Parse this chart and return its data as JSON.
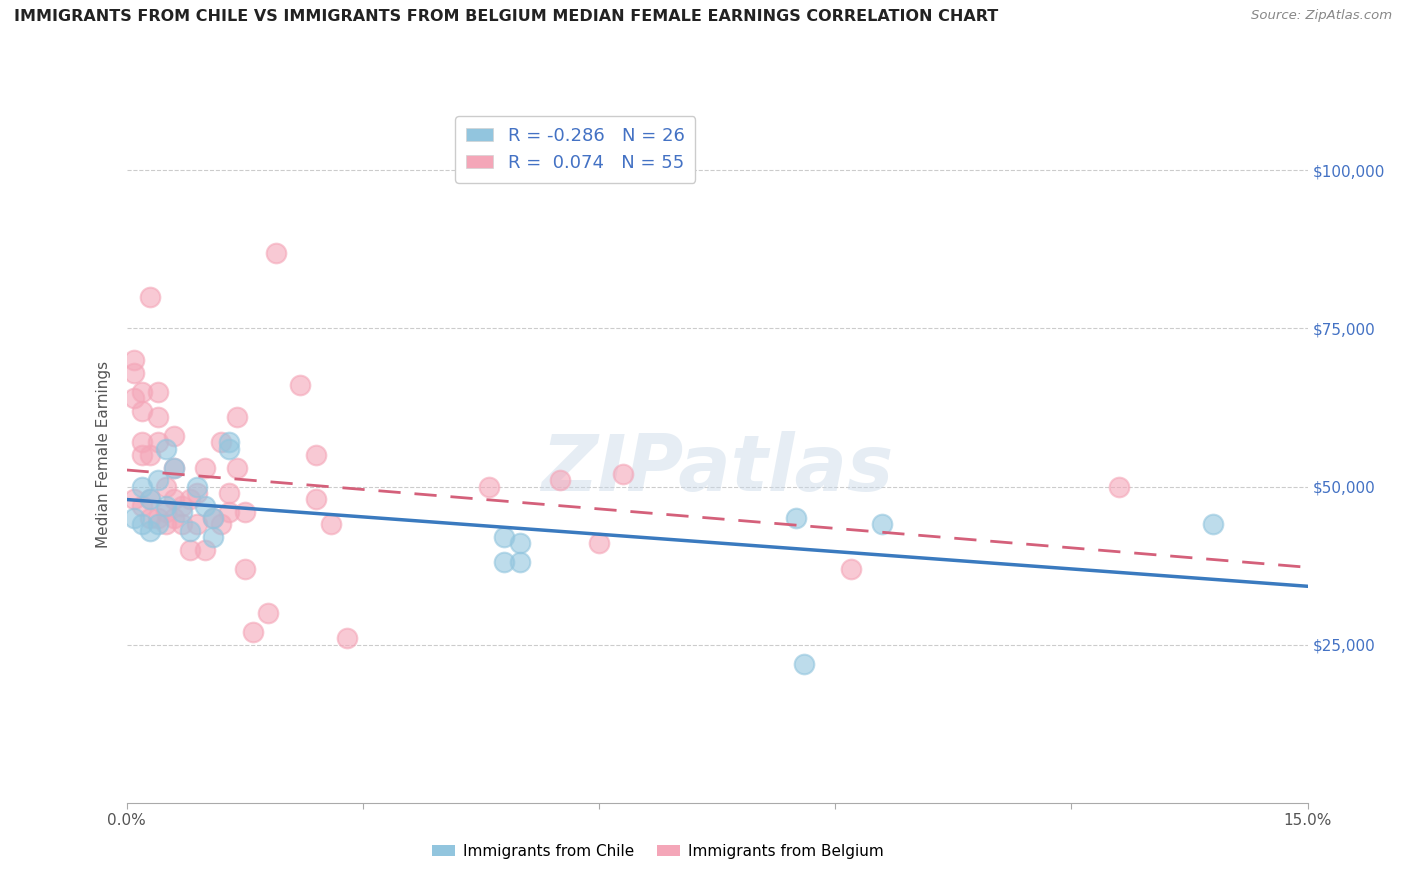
{
  "title": "IMMIGRANTS FROM CHILE VS IMMIGRANTS FROM BELGIUM MEDIAN FEMALE EARNINGS CORRELATION CHART",
  "source": "Source: ZipAtlas.com",
  "ylabel": "Median Female Earnings",
  "xlim": [
    0.0,
    0.15
  ],
  "ylim": [
    0,
    110000
  ],
  "ytick_positions": [
    25000,
    50000,
    75000,
    100000
  ],
  "ytick_labels": [
    "$25,000",
    "$50,000",
    "$75,000",
    "$100,000"
  ],
  "chile_R": -0.286,
  "chile_N": 26,
  "belgium_R": 0.074,
  "belgium_N": 55,
  "chile_color": "#92c5de",
  "belgium_color": "#f4a6b8",
  "chile_line_color": "#3a7abf",
  "belgium_line_color": "#d4607a",
  "watermark": "ZIPatlas",
  "chile_x": [
    0.001,
    0.002,
    0.002,
    0.003,
    0.003,
    0.004,
    0.004,
    0.005,
    0.005,
    0.006,
    0.007,
    0.008,
    0.009,
    0.01,
    0.011,
    0.011,
    0.013,
    0.013,
    0.048,
    0.048,
    0.05,
    0.05,
    0.085,
    0.086,
    0.096,
    0.138
  ],
  "chile_y": [
    45000,
    50000,
    44000,
    48000,
    43000,
    51000,
    44000,
    47000,
    56000,
    53000,
    46000,
    43000,
    50000,
    47000,
    45000,
    42000,
    57000,
    56000,
    42000,
    38000,
    38000,
    41000,
    45000,
    22000,
    44000,
    44000
  ],
  "belgium_x": [
    0.001,
    0.001,
    0.001,
    0.001,
    0.002,
    0.002,
    0.002,
    0.002,
    0.002,
    0.003,
    0.003,
    0.003,
    0.003,
    0.004,
    0.004,
    0.004,
    0.004,
    0.005,
    0.005,
    0.005,
    0.006,
    0.006,
    0.006,
    0.006,
    0.007,
    0.007,
    0.008,
    0.008,
    0.009,
    0.009,
    0.01,
    0.01,
    0.011,
    0.012,
    0.012,
    0.013,
    0.013,
    0.014,
    0.014,
    0.015,
    0.015,
    0.016,
    0.018,
    0.019,
    0.022,
    0.024,
    0.024,
    0.026,
    0.028,
    0.046,
    0.055,
    0.06,
    0.063,
    0.092,
    0.126
  ],
  "belgium_y": [
    48000,
    64000,
    68000,
    70000,
    47000,
    55000,
    57000,
    62000,
    65000,
    45000,
    48000,
    55000,
    80000,
    45000,
    57000,
    61000,
    65000,
    44000,
    46000,
    50000,
    45000,
    48000,
    53000,
    58000,
    44000,
    47000,
    40000,
    48000,
    44000,
    49000,
    40000,
    53000,
    45000,
    44000,
    57000,
    46000,
    49000,
    53000,
    61000,
    46000,
    37000,
    27000,
    30000,
    87000,
    66000,
    48000,
    55000,
    44000,
    26000,
    50000,
    51000,
    41000,
    52000,
    37000,
    50000
  ]
}
